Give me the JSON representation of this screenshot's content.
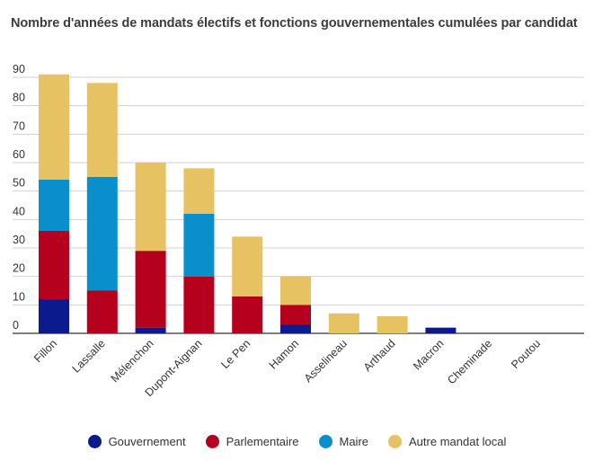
{
  "chart_data": {
    "type": "bar",
    "stacked": true,
    "title": "Nombre d'années de mandats électifs et fonctions gouvernementales cumulées par candidat",
    "xlabel": "",
    "ylabel": "",
    "ylim": [
      0,
      90
    ],
    "yticks": [
      0,
      10,
      20,
      30,
      40,
      50,
      60,
      70,
      80,
      90
    ],
    "grid": true,
    "legend_position": "bottom",
    "categories": [
      "Fillon",
      "Lassalle",
      "Mélenchon",
      "Dupont-Aignan",
      "Le Pen",
      "Hamon",
      "Asselineau",
      "Arthaud",
      "Macron",
      "Cheminade",
      "Poutou"
    ],
    "series": [
      {
        "name": "Gouvernement",
        "color": "#0b1a8c",
        "values": [
          12,
          0,
          2,
          0,
          0,
          3,
          0,
          0,
          2,
          0,
          0
        ]
      },
      {
        "name": "Parlementaire",
        "color": "#b5001e",
        "values": [
          24,
          15,
          27,
          20,
          13,
          7,
          0,
          0,
          0,
          0,
          0
        ]
      },
      {
        "name": "Maire",
        "color": "#0a8fcc",
        "values": [
          18,
          40,
          0,
          22,
          0,
          0,
          0,
          0,
          0,
          0,
          0
        ]
      },
      {
        "name": "Autre mandat local",
        "color": "#e6c263",
        "values": [
          37,
          33,
          31,
          16,
          21,
          10,
          7,
          6,
          0,
          0,
          0
        ]
      }
    ]
  }
}
